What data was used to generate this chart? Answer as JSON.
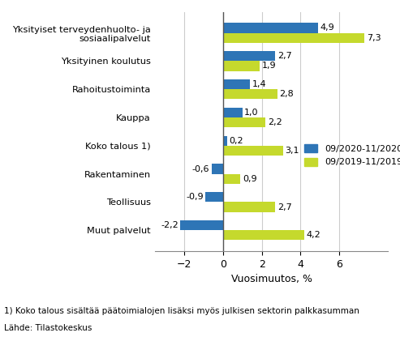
{
  "categories": [
    "Yksityiset terveydenhuolto- ja\nsosiaalipalvelut",
    "Yksityinen koulutus",
    "Rahoitustoiminta",
    "Kauppa",
    "Koko talous 1)",
    "Rakentaminen",
    "Teollisuus",
    "Muut palvelut"
  ],
  "series_2020": [
    4.9,
    2.7,
    1.4,
    1.0,
    0.2,
    -0.6,
    -0.9,
    -2.2
  ],
  "series_2019": [
    7.3,
    1.9,
    2.8,
    2.2,
    3.1,
    0.9,
    2.7,
    4.2
  ],
  "color_2020": "#2E75B6",
  "color_2019": "#C5D92D",
  "legend_2020": "09/2020-11/2020",
  "legend_2019": "09/2019-11/2019",
  "xlabel": "Vuosimuutos, %",
  "xlim": [
    -3.5,
    8.5
  ],
  "xticks": [
    -2,
    0,
    2,
    4,
    6
  ],
  "footnote1": "1) Koko talous sisältää päätoimialojen lisäksi myös julkisen sektorin palkkasumman",
  "footnote2": "Lähde: Tilastokeskus",
  "bar_height": 0.35,
  "background_color": "#ffffff"
}
